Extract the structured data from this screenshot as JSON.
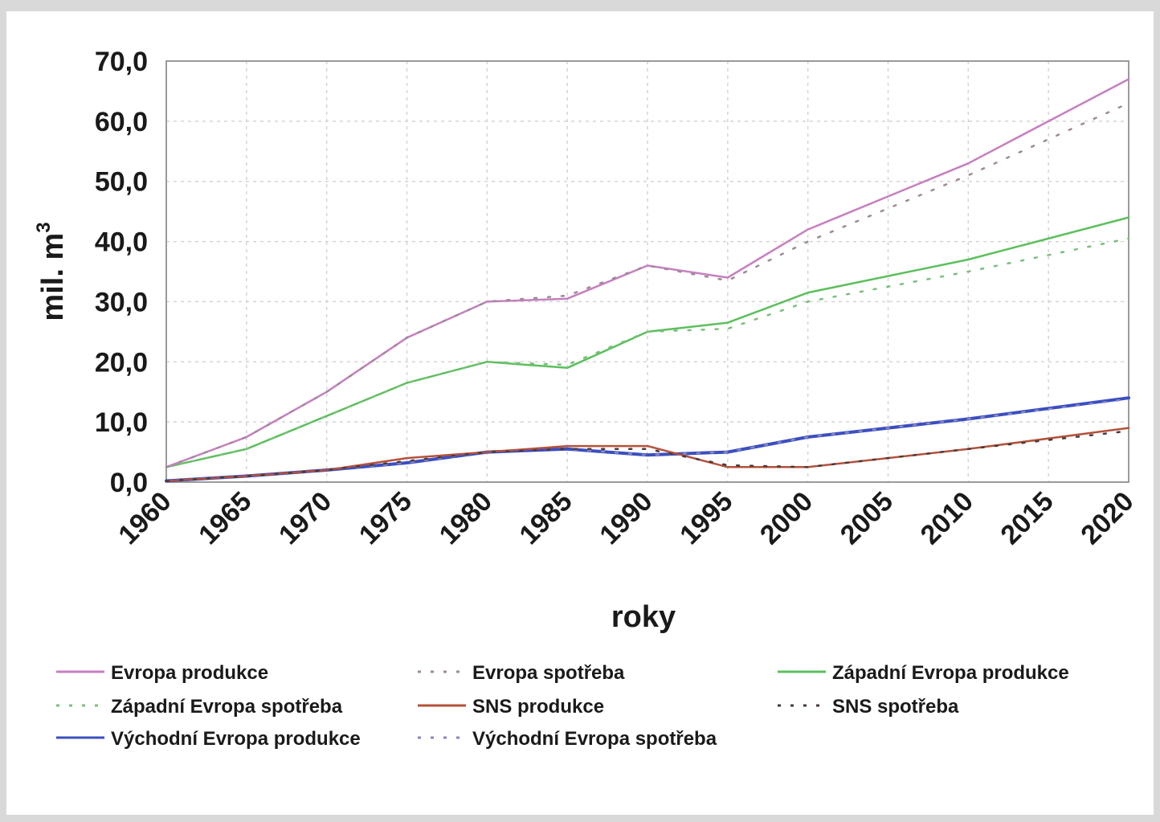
{
  "chart_data": {
    "type": "line",
    "xlabel": "roky",
    "ylabel": "mil. m",
    "ylabel_superscript": "3",
    "x_ticks": [
      "1960",
      "1965",
      "1970",
      "1975",
      "1980",
      "1985",
      "1990",
      "1995",
      "2000",
      "2005",
      "2010",
      "2015",
      "2020"
    ],
    "y_ticks": [
      "0,0",
      "10,0",
      "20,0",
      "30,0",
      "40,0",
      "50,0",
      "60,0",
      "70,0"
    ],
    "xlim": [
      1960,
      2020
    ],
    "ylim": [
      0,
      70
    ],
    "grid": true,
    "legend_position": "bottom",
    "series": [
      {
        "name": "Evropa produkce",
        "color": "#c77fc0",
        "style": "solid",
        "x": [
          1960,
          1965,
          1970,
          1975,
          1980,
          1985,
          1990,
          1995,
          2000,
          2010,
          2020
        ],
        "y": [
          2.5,
          7.5,
          15.0,
          24.0,
          30.0,
          30.5,
          36.0,
          34.0,
          42.0,
          53.0,
          67.0
        ]
      },
      {
        "name": "Evropa spotřeba",
        "color": "#9e8a98",
        "style": "dotted",
        "x": [
          1960,
          1965,
          1970,
          1975,
          1980,
          1985,
          1990,
          1995,
          2000,
          2010,
          2020
        ],
        "y": [
          2.5,
          7.5,
          15.0,
          24.0,
          30.0,
          31.0,
          36.0,
          33.5,
          40.0,
          51.0,
          63.0
        ]
      },
      {
        "name": "Západní Evropa produkce",
        "color": "#5cbf5c",
        "style": "solid",
        "x": [
          1960,
          1965,
          1970,
          1975,
          1980,
          1985,
          1990,
          1995,
          2000,
          2010,
          2020
        ],
        "y": [
          2.5,
          5.5,
          11.0,
          16.5,
          20.0,
          19.0,
          25.0,
          26.5,
          31.5,
          37.0,
          44.0
        ]
      },
      {
        "name": "Západní Evropa spotřeba",
        "color": "#7bbf7b",
        "style": "dotted",
        "x": [
          1960,
          1965,
          1970,
          1975,
          1980,
          1985,
          1990,
          1995,
          2000,
          2010,
          2020
        ],
        "y": [
          2.5,
          5.5,
          11.0,
          16.5,
          20.0,
          19.5,
          25.0,
          25.5,
          30.0,
          35.0,
          40.5
        ]
      },
      {
        "name": "SNS produkce",
        "color": "#b5513a",
        "style": "solid",
        "x": [
          1960,
          1965,
          1970,
          1975,
          1980,
          1985,
          1990,
          1995,
          2000,
          2010,
          2020
        ],
        "y": [
          0.2,
          1.0,
          2.0,
          4.0,
          5.0,
          6.0,
          6.0,
          2.5,
          2.5,
          5.5,
          9.0
        ]
      },
      {
        "name": "SNS spotřeba",
        "color": "#4a3a3a",
        "style": "dotted",
        "x": [
          1960,
          1965,
          1970,
          1975,
          1980,
          1985,
          1990,
          1995,
          2000,
          2010,
          2020
        ],
        "y": [
          0.2,
          1.0,
          2.0,
          3.5,
          5.0,
          5.5,
          5.5,
          2.8,
          2.5,
          5.5,
          8.5
        ]
      },
      {
        "name": "Východní Evropa produkce",
        "color": "#3a4fc0",
        "style": "solid",
        "x": [
          1960,
          1965,
          1970,
          1975,
          1980,
          1985,
          1990,
          1995,
          2000,
          2010,
          2020
        ],
        "y": [
          0.2,
          1.0,
          2.0,
          3.2,
          5.0,
          5.5,
          4.5,
          5.0,
          7.5,
          10.5,
          14.0
        ]
      },
      {
        "name": "Východní Evropa spotřeba",
        "color": "#8a86c2",
        "style": "dotted",
        "x": [
          1960,
          1965,
          1970,
          1975,
          1980,
          1985,
          1990,
          1995,
          2000,
          2010,
          2020
        ],
        "y": [
          0.2,
          1.0,
          2.0,
          3.2,
          5.0,
          5.5,
          4.5,
          5.0,
          7.5,
          10.5,
          13.8
        ]
      }
    ]
  }
}
